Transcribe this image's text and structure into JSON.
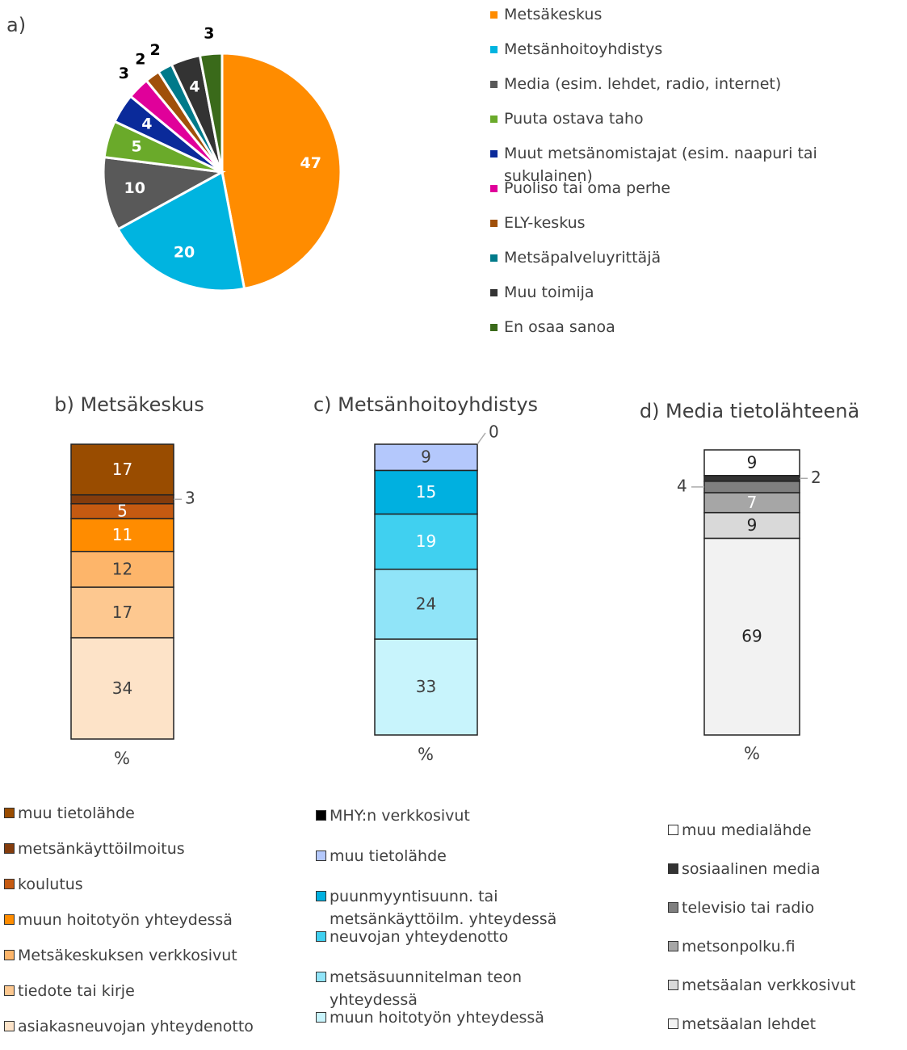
{
  "chart_data": [
    {
      "type": "pie",
      "title": "a)",
      "categories": [
        "Metsäkeskus",
        "Metsänhoitoyhdistys",
        "Media (esim. lehdet, radio, internet)",
        "Puuta ostava taho",
        "Muut metsänomistajat (esim. naapuri tai sukulainen)",
        "Puoliso tai oma perhe",
        "ELY-keskus",
        "Metsäpalveluyrittäjä",
        "Muu toimija",
        "En osaa sanoa"
      ],
      "values": [
        47,
        20,
        10,
        5,
        4,
        3,
        2,
        2,
        4,
        3
      ],
      "colors": [
        "#ff8c00",
        "#00b4e0",
        "#595959",
        "#6aaa2a",
        "#0a2a9a",
        "#e0009a",
        "#a0500a",
        "#007a8a",
        "#333333",
        "#3a6a1a"
      ]
    },
    {
      "type": "stacked-bar",
      "title": "b) Metsäkeskus",
      "x_label": "%",
      "series": [
        {
          "name": "asiakasneuvojan yhteydenotto",
          "color": "#fde3c8",
          "label_color": "#404040",
          "values": [
            34
          ]
        },
        {
          "name": "tiedote tai kirje",
          "color": "#fdc890",
          "label_color": "#404040",
          "values": [
            17
          ]
        },
        {
          "name": "Metsäkeskuksen verkkosivut",
          "color": "#fdb56a",
          "label_color": "#404040",
          "values": [
            12
          ]
        },
        {
          "name": "muun hoitotyön yhteydessä",
          "color": "#ff8c00",
          "label_color": "#ffffff",
          "values": [
            11
          ]
        },
        {
          "name": "koulutus",
          "color": "#c55a11",
          "label_color": "#ffffff",
          "values": [
            5
          ]
        },
        {
          "name": "metsänkäyttöilmoitus",
          "color": "#843c0c",
          "label_color": "#404040",
          "values": [
            3
          ]
        },
        {
          "name": "muu tietolähde",
          "color": "#994c00",
          "label_color": "#ffffff",
          "values": [
            17
          ]
        }
      ]
    },
    {
      "type": "stacked-bar",
      "title": "c) Metsänhoitoyhdistys",
      "x_label": "%",
      "series": [
        {
          "name": "muun hoitotyön yhteydessä",
          "color": "#c8f4fc",
          "label_color": "#404040",
          "values": [
            33
          ]
        },
        {
          "name": "metsäsuunnitelman teon yhteydessä",
          "color": "#90e4f8",
          "label_color": "#404040",
          "values": [
            24
          ]
        },
        {
          "name": "neuvojan yhteydenotto",
          "color": "#40d0f0",
          "label_color": "#ffffff",
          "values": [
            19
          ]
        },
        {
          "name": "puunmyyntisuunn. tai metsänkäyttöilm. yhteydessä",
          "color": "#00b0e0",
          "label_color": "#ffffff",
          "values": [
            15
          ]
        },
        {
          "name": "muu tietolähde",
          "color": "#b4c8fc",
          "label_color": "#404040",
          "values": [
            9
          ]
        },
        {
          "name": "MHY:n verkkosivut",
          "color": "#000000",
          "label_color": "#404040",
          "values": [
            0
          ]
        }
      ]
    },
    {
      "type": "stacked-bar",
      "title": "d) Media tietolähteenä",
      "x_label": "%",
      "series": [
        {
          "name": "metsäalan lehdet",
          "color": "#f2f2f2",
          "label_color": "#222222",
          "values": [
            69
          ]
        },
        {
          "name": "metsäalan verkkosivut",
          "color": "#d9d9d9",
          "label_color": "#222222",
          "values": [
            9
          ]
        },
        {
          "name": "metsonpolku.fi",
          "color": "#a6a6a6",
          "label_color": "#ffffff",
          "values": [
            7
          ]
        },
        {
          "name": "televisio tai radio",
          "color": "#7f7f7f",
          "label_color": "#222222",
          "values": [
            4
          ]
        },
        {
          "name": "sosiaalinen media",
          "color": "#333333",
          "label_color": "#222222",
          "values": [
            2
          ]
        },
        {
          "name": "muu medialähde",
          "color": "#ffffff",
          "label_color": "#222222",
          "values": [
            9
          ]
        }
      ]
    }
  ]
}
